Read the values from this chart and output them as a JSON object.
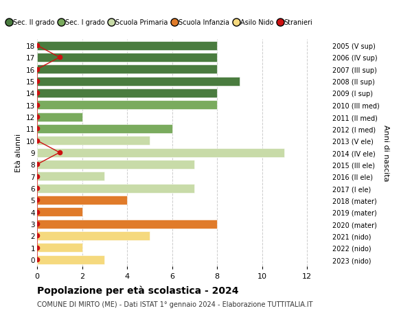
{
  "ages": [
    18,
    17,
    16,
    15,
    14,
    13,
    12,
    11,
    10,
    9,
    8,
    7,
    6,
    5,
    4,
    3,
    2,
    1,
    0
  ],
  "years": [
    "2005 (V sup)",
    "2006 (IV sup)",
    "2007 (III sup)",
    "2008 (II sup)",
    "2009 (I sup)",
    "2010 (III med)",
    "2011 (II med)",
    "2012 (I med)",
    "2013 (V ele)",
    "2014 (IV ele)",
    "2015 (III ele)",
    "2016 (II ele)",
    "2017 (I ele)",
    "2018 (mater)",
    "2019 (mater)",
    "2020 (mater)",
    "2021 (nido)",
    "2022 (nido)",
    "2023 (nido)"
  ],
  "values": [
    8,
    8,
    8,
    9,
    8,
    8,
    2,
    6,
    5,
    11,
    7,
    3,
    7,
    4,
    2,
    8,
    5,
    2,
    3
  ],
  "bar_colors": [
    "#4a7c3f",
    "#4a7c3f",
    "#4a7c3f",
    "#4a7c3f",
    "#4a7c3f",
    "#7aab5e",
    "#7aab5e",
    "#7aab5e",
    "#c8dba8",
    "#c8dba8",
    "#c8dba8",
    "#c8dba8",
    "#c8dba8",
    "#e07b2a",
    "#e07b2a",
    "#e07b2a",
    "#f5d97e",
    "#f5d97e",
    "#f5d97e"
  ],
  "legend_labels": [
    "Sec. II grado",
    "Sec. I grado",
    "Scuola Primaria",
    "Scuola Infanzia",
    "Asilo Nido",
    "Stranieri"
  ],
  "legend_colors": [
    "#4a7c3f",
    "#7aab5e",
    "#c8dba8",
    "#e07b2a",
    "#f5d97e",
    "#cc1111"
  ],
  "title": "Popolazione per età scolastica - 2024",
  "subtitle": "COMUNE DI MIRTO (ME) - Dati ISTAT 1° gennaio 2024 - Elaborazione TUTTITALIA.IT",
  "ylabel_left": "Età alunni",
  "ylabel_right": "Anni di nascita",
  "xlim": [
    0,
    13
  ],
  "xticks": [
    0,
    2,
    4,
    6,
    8,
    10,
    12
  ],
  "ylim_low": -0.55,
  "ylim_high": 18.55,
  "background_color": "#ffffff",
  "grid_color": "#cccccc",
  "stranieri_color": "#cc1111",
  "stranieri_counts": [
    0,
    1,
    0,
    0,
    0,
    0,
    0,
    0,
    0,
    1,
    0,
    0,
    0,
    0,
    0,
    0,
    0,
    0,
    0
  ]
}
